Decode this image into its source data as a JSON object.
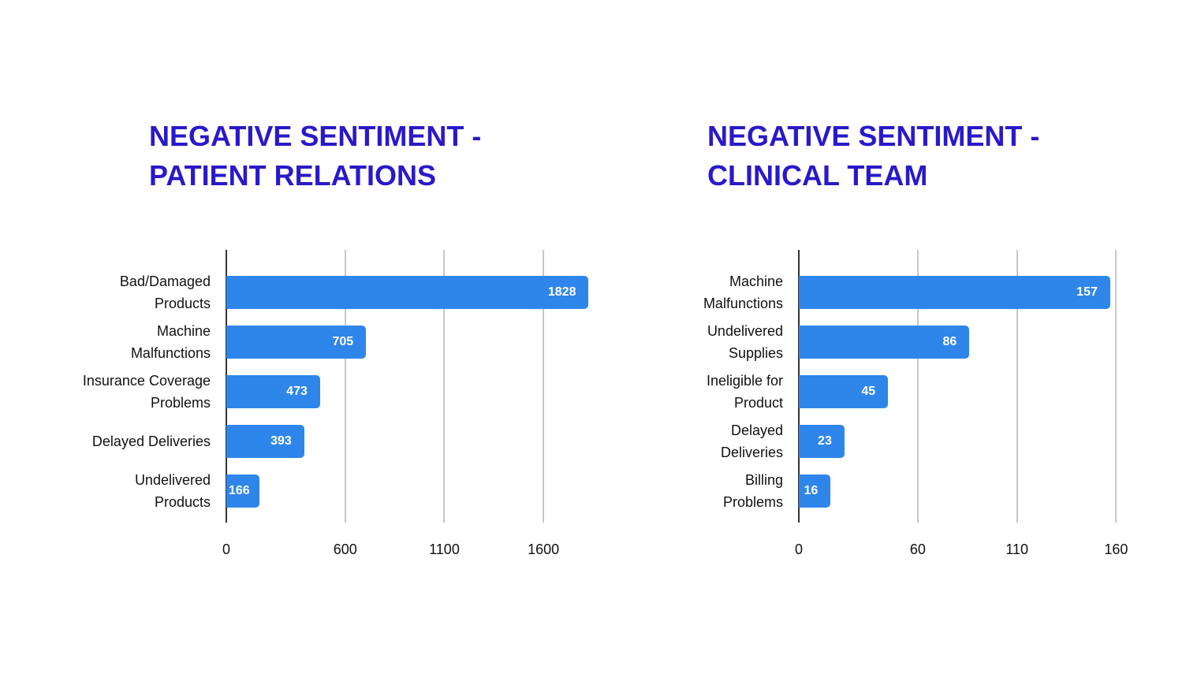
{
  "chart_data": [
    {
      "type": "bar",
      "title": "NEGATIVE SENTIMENT - PATIENT RELATIONS",
      "categories": [
        "Bad/Damaged Products",
        "Machine Malfunctions",
        "Insurance Coverage Problems",
        "Delayed Deliveries",
        "Undelivered Products"
      ],
      "values": [
        1828,
        705,
        473,
        393,
        166
      ],
      "color": "#2f86ea",
      "xlim": [
        0,
        1850
      ],
      "xticks": [
        0,
        600,
        1100,
        1600
      ],
      "grid": true
    },
    {
      "type": "bar",
      "title": "NEGATIVE SENTIMENT - CLINICAL TEAM",
      "categories": [
        "Machine Malfunctions",
        "Undelivered Supplies",
        "Ineligible for Product",
        "Delayed Deliveries",
        "Billing Problems"
      ],
      "values": [
        157,
        86,
        45,
        23,
        16
      ],
      "color": "#2f86ea",
      "xlim": [
        0,
        165
      ],
      "xticks": [
        0,
        60,
        110,
        160
      ],
      "grid": true
    }
  ]
}
